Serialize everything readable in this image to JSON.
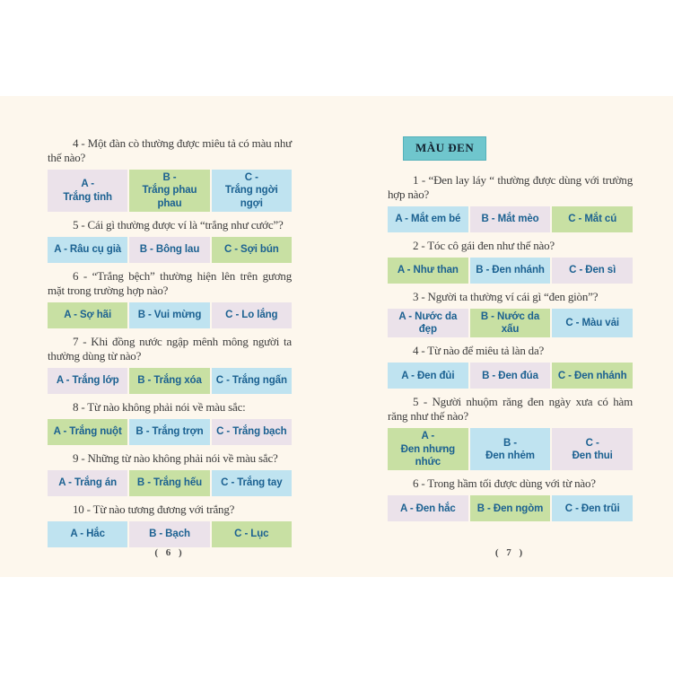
{
  "colors": {
    "paper": "#fdf7ed",
    "lavender": "#ebe2ea",
    "green": "#c8e0a3",
    "blue": "#bfe3f0",
    "teal_header_bg": "#6fc6cd",
    "teal_header_border": "#54b1ba",
    "option_text": "#1b6191",
    "question_text": "#3b3b3b"
  },
  "pages": [
    {
      "number": "( 6 )",
      "section_header": null,
      "questions": [
        {
          "text": "4 - Một đàn cò thường được miêu tả có màu như thế nào?",
          "options": [
            {
              "prefix": "A -",
              "label": "Trắng tinh",
              "color": "lavender",
              "two_line": true
            },
            {
              "prefix": "B -",
              "label": "Trắng phau phau",
              "color": "green",
              "two_line": true
            },
            {
              "prefix": "C -",
              "label": "Trắng ngời ngợi",
              "color": "blue",
              "two_line": true
            }
          ]
        },
        {
          "text": "5 - Cái gì thường được ví là “trắng như cước”?",
          "options": [
            {
              "prefix": "A -",
              "label": "Râu cụ già",
              "color": "blue",
              "two_line": false
            },
            {
              "prefix": "B -",
              "label": "Bông lau",
              "color": "lavender",
              "two_line": false
            },
            {
              "prefix": "C -",
              "label": "Sợi bún",
              "color": "green",
              "two_line": false
            }
          ]
        },
        {
          "text": "6 - “Trắng bệch” thường hiện lên trên gương mặt trong trường hợp nào?",
          "options": [
            {
              "prefix": "A -",
              "label": "Sợ hãi",
              "color": "green",
              "two_line": false
            },
            {
              "prefix": "B -",
              "label": "Vui mừng",
              "color": "blue",
              "two_line": false
            },
            {
              "prefix": "C -",
              "label": "Lo lắng",
              "color": "lavender",
              "two_line": false
            }
          ]
        },
        {
          "text": "7 - Khi đồng nước ngập mênh mông người ta thường dùng từ nào?",
          "options": [
            {
              "prefix": "A -",
              "label": "Trắng lớp",
              "color": "lavender",
              "two_line": false
            },
            {
              "prefix": "B -",
              "label": "Trắng xóa",
              "color": "green",
              "two_line": false
            },
            {
              "prefix": "C -",
              "label": "Trắng ngấn",
              "color": "blue",
              "two_line": false
            }
          ]
        },
        {
          "text": "8 - Từ nào không phải nói về màu sắc:",
          "options": [
            {
              "prefix": "A -",
              "label": "Trắng nuột",
              "color": "green",
              "two_line": false
            },
            {
              "prefix": "B -",
              "label": "Trắng trợn",
              "color": "blue",
              "two_line": false
            },
            {
              "prefix": "C -",
              "label": "Trắng bạch",
              "color": "lavender",
              "two_line": false
            }
          ]
        },
        {
          "text": "9 - Những từ nào không phải nói về màu sắc?",
          "options": [
            {
              "prefix": "A -",
              "label": "Trắng án",
              "color": "lavender",
              "two_line": false
            },
            {
              "prefix": "B -",
              "label": "Trắng hếu",
              "color": "green",
              "two_line": false
            },
            {
              "prefix": "C -",
              "label": "Trắng tay",
              "color": "blue",
              "two_line": false
            }
          ]
        },
        {
          "text": "10 - Từ nào tương đương với trắng?",
          "options": [
            {
              "prefix": "A -",
              "label": "Hắc",
              "color": "blue",
              "two_line": false
            },
            {
              "prefix": "B -",
              "label": "Bạch",
              "color": "lavender",
              "two_line": false
            },
            {
              "prefix": "C -",
              "label": "Lục",
              "color": "green",
              "two_line": false
            }
          ]
        }
      ]
    },
    {
      "number": "( 7 )",
      "section_header": "MÀU ĐEN",
      "questions": [
        {
          "text": "1 - “Đen lay láy “ thường được dùng với trường hợp nào?",
          "options": [
            {
              "prefix": "A -",
              "label": "Mắt em bé",
              "color": "blue",
              "two_line": false
            },
            {
              "prefix": "B -",
              "label": "Mắt mèo",
              "color": "lavender",
              "two_line": false
            },
            {
              "prefix": "C -",
              "label": "Mắt cú",
              "color": "green",
              "two_line": false
            }
          ]
        },
        {
          "text": "2 - Tóc cô gái đen như thế nào?",
          "options": [
            {
              "prefix": "A -",
              "label": "Như than",
              "color": "green",
              "two_line": false
            },
            {
              "prefix": "B -",
              "label": "Đen nhánh",
              "color": "blue",
              "two_line": false
            },
            {
              "prefix": "C -",
              "label": "Đen sì",
              "color": "lavender",
              "two_line": false
            }
          ]
        },
        {
          "text": "3 - Người ta thường ví cái gì “đen giòn”?",
          "options": [
            {
              "prefix": "A -",
              "label": "Nước da đẹp",
              "color": "lavender",
              "two_line": false
            },
            {
              "prefix": "B -",
              "label": "Nước da xấu",
              "color": "green",
              "two_line": false
            },
            {
              "prefix": "C -",
              "label": "Màu vải",
              "color": "blue",
              "two_line": false
            }
          ]
        },
        {
          "text": "4 - Từ nào để miêu tả làn da?",
          "options": [
            {
              "prefix": "A -",
              "label": "Đen đủi",
              "color": "blue",
              "two_line": false
            },
            {
              "prefix": "B -",
              "label": "Đen đúa",
              "color": "lavender",
              "two_line": false
            },
            {
              "prefix": "C -",
              "label": "Đen nhánh",
              "color": "green",
              "two_line": false
            }
          ]
        },
        {
          "text": "5 - Người nhuộm răng đen ngày xưa có hàm răng như thế nào?",
          "options": [
            {
              "prefix": "A -",
              "label": "Đen nhưng nhức",
              "color": "green",
              "two_line": true
            },
            {
              "prefix": "B -",
              "label": "Đen nhẻm",
              "color": "blue",
              "two_line": true
            },
            {
              "prefix": "C -",
              "label": "Đen thui",
              "color": "lavender",
              "two_line": true
            }
          ]
        },
        {
          "text": "6 - Trong hầm tối được dùng với từ nào?",
          "options": [
            {
              "prefix": "A -",
              "label": "Đen hắc",
              "color": "lavender",
              "two_line": false
            },
            {
              "prefix": "B -",
              "label": "Đen ngòm",
              "color": "green",
              "two_line": false
            },
            {
              "prefix": "C -",
              "label": "Đen trũi",
              "color": "blue",
              "two_line": false
            }
          ]
        }
      ]
    }
  ]
}
